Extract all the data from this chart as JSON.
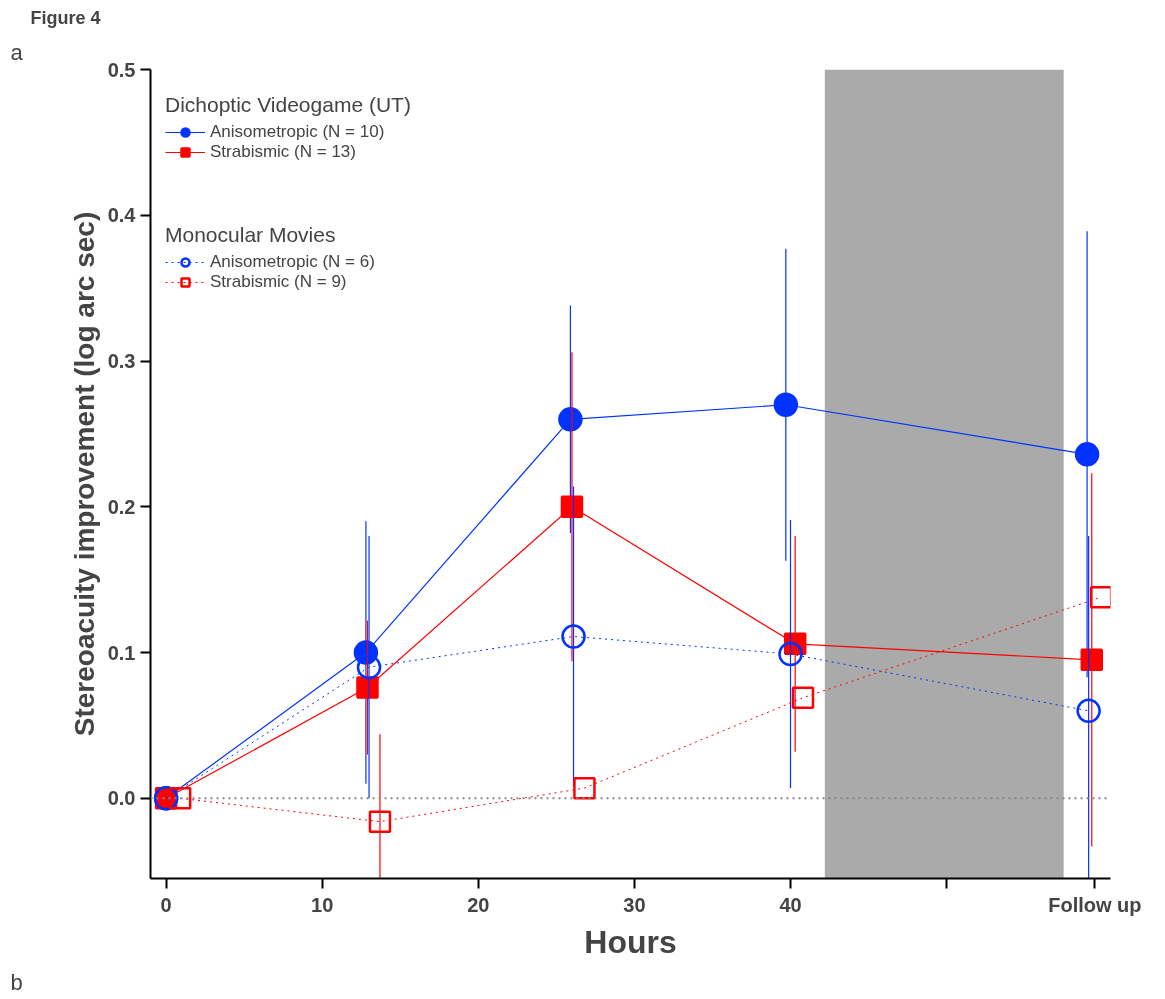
{
  "chart_data": {
    "type": "line",
    "title": "Figure 4",
    "xlabel": "Hours",
    "ylabel": "Stereoacuity improvement (log arc sec)",
    "legend_title": [
      "Dichoptic Videogame (UT)",
      "Monocular Movies"
    ],
    "series": [
      {
        "name": "Anisometropic (N = 10)",
        "color": "#0033ff",
        "marker": "circle",
        "line_style": "solid",
        "x": [
          0,
          12.8,
          25.9,
          39.7,
          59.0
        ],
        "values": [
          0,
          0.1,
          0.26,
          0.27,
          0.236
        ],
        "errors": [
          null,
          0.09,
          0.078,
          0.107,
          0.153
        ]
      },
      {
        "name": "Strabismic (N = 13)",
        "color": "#ff0000",
        "marker": "square",
        "line_style": "solid",
        "x": [
          0,
          12.9,
          26.0,
          40.3,
          59.3
        ],
        "values": [
          0,
          0.076,
          0.2,
          0.106,
          0.095
        ],
        "errors": [
          null,
          0.046,
          0.106,
          0.074,
          0.128
        ]
      },
      {
        "name": "Anisometropic (N = 6)",
        "color": "#0033ff",
        "marker": "circle",
        "line_style": "dotted",
        "x": [
          0,
          13.0,
          26.1,
          40.0,
          59.1
        ],
        "values": [
          0,
          0.09,
          0.111,
          0.099,
          0.06
        ],
        "errors": [
          null,
          0.09,
          0.103,
          0.092,
          0.12
        ]
      },
      {
        "name": "Strabismic (N = 9)",
        "color": "#ff0000",
        "marker": "square",
        "line_style": "dotted",
        "x": [
          0.9,
          13.7,
          26.8,
          40.8,
          59.9
        ],
        "values": [
          0,
          -0.016,
          0.007,
          0.069,
          0.138
        ],
        "errors": [
          null,
          0.06,
          null,
          null,
          null
        ]
      }
    ],
    "xlim": [
      -1,
      60.5
    ],
    "ylim": [
      -0.055,
      0.5
    ],
    "xticks": [
      0,
      10,
      20,
      30,
      40,
      {
        "value": 50,
        "label": null
      },
      {
        "value": 59.5,
        "label": "Follow up"
      }
    ],
    "yticks": [
      {
        "value": 0,
        "label": "0.0"
      },
      0.1,
      0.2,
      0.3,
      0.4,
      0.5
    ],
    "ref_lines": [
      {
        "axis": "y",
        "value": 0,
        "color": "#888888",
        "line_style": "dotted"
      }
    ],
    "bands": [
      {
        "axis": "x",
        "from": 42.2,
        "to": 57.5,
        "color": "#aaaaaa"
      }
    ],
    "annotations": [
      "a",
      "b"
    ],
    "legend": "top left",
    "grid": false
  }
}
